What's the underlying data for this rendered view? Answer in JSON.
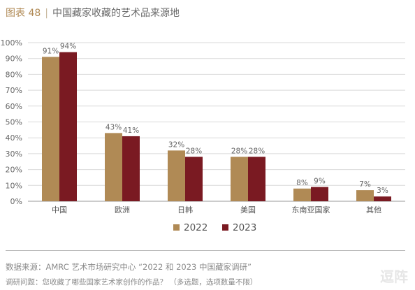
{
  "header": {
    "figure_label": "图表 48",
    "separator": "|",
    "title": "中国藏家收藏的艺术品来源地"
  },
  "chart_data": {
    "type": "bar",
    "categories": [
      "中国",
      "欧洲",
      "日韩",
      "美国",
      "东南亚国家",
      "其他"
    ],
    "series": [
      {
        "name": "2022",
        "values": [
          91,
          43,
          32,
          28,
          8,
          7
        ],
        "labels": [
          "91%",
          "43%",
          "32%",
          "28%",
          "8%",
          "7%"
        ],
        "color": "#b08a55"
      },
      {
        "name": "2023",
        "values": [
          94,
          41,
          28,
          28,
          9,
          3
        ],
        "labels": [
          "94%",
          "41%",
          "28%",
          "28%",
          "9%",
          "3%"
        ],
        "color": "#7a1a22"
      }
    ],
    "yticks": [
      0,
      10,
      20,
      30,
      40,
      50,
      60,
      70,
      80,
      90,
      100
    ],
    "ytick_labels": [
      "0%",
      "10%",
      "20%",
      "30%",
      "40%",
      "50%",
      "60%",
      "70%",
      "80%",
      "90%",
      "100%"
    ],
    "ylim": [
      0,
      100
    ],
    "grid": true,
    "legend_position": "bottom",
    "xlabel": "",
    "ylabel": ""
  },
  "footer": {
    "source": "数据来源：AMRC 艺术市场研究中心 “2022 和 2023 中国藏家调研”",
    "question": "调研问题：您收藏了哪些国家艺术家创作的作品？ （多选题，选项数量不限）",
    "watermark": "逗阵"
  }
}
